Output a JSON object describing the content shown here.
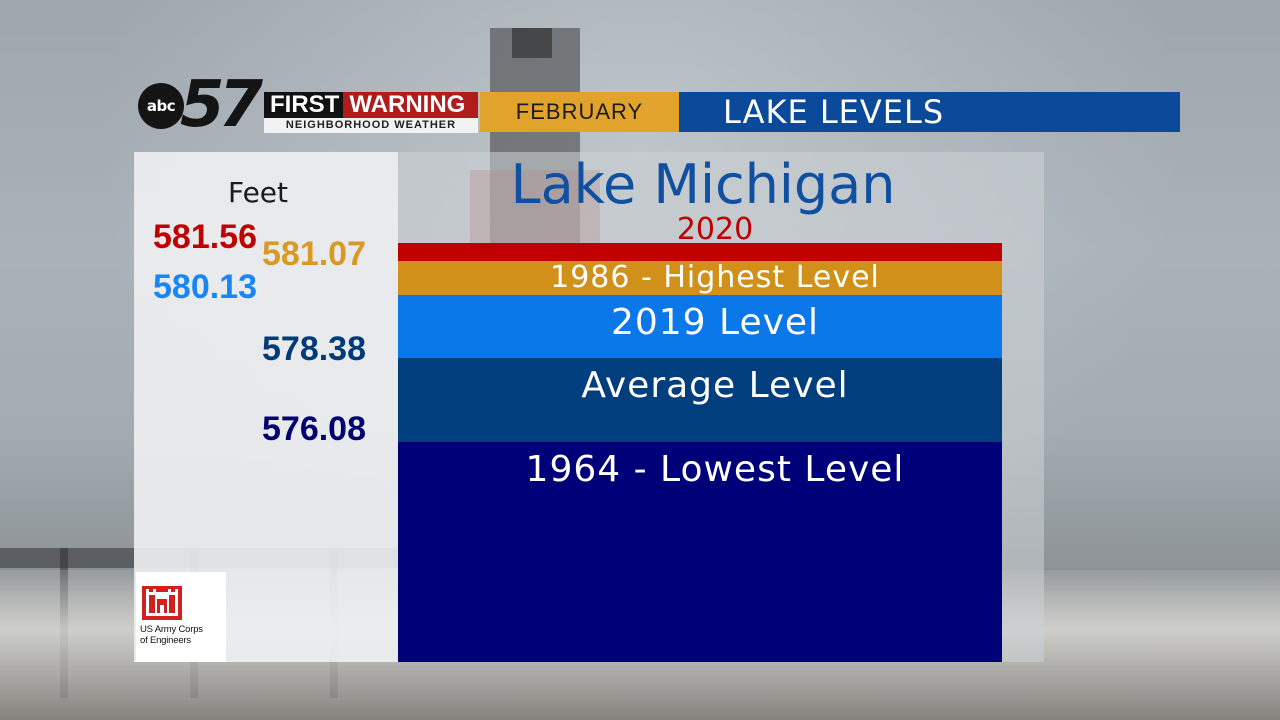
{
  "header": {
    "logo_abc": "abc",
    "logo_number": "57",
    "first": "FIRST",
    "warning": "WARNING",
    "subtitle": "NEIGHBORHOOD WEATHER",
    "month": "FEBRUARY",
    "topic": "LAKE LEVELS"
  },
  "colors": {
    "level_2020": "#c00000",
    "level_1986": "#d0901a",
    "level_2019": "#0a78e8",
    "level_average": "#013e7d",
    "level_1964": "#000078",
    "header_month_bg": "#e1a32c",
    "header_topic_bg": "#0b4a9a"
  },
  "axis_label": "Feet",
  "chart_data": {
    "type": "bar",
    "title": "Lake Michigan",
    "unit": "Feet",
    "levels": [
      {
        "label": "2020",
        "value": 581.56,
        "value_text": "581.56",
        "color": "#c00000",
        "text_color": "#c00000"
      },
      {
        "label": "1986 - Highest Level",
        "value": 581.07,
        "value_text": "581.07",
        "color": "#d0901a",
        "text_color": "#d99a25"
      },
      {
        "label": "2019 Level",
        "value": 580.13,
        "value_text": "580.13",
        "color": "#0a78e8",
        "text_color": "#1a86f2"
      },
      {
        "label": "Average Level",
        "value": 578.38,
        "value_text": "578.38",
        "color": "#013e7d",
        "text_color": "#003a78"
      },
      {
        "label": "1964 - Lowest Level",
        "value": 576.08,
        "value_text": "576.08",
        "color": "#000078",
        "text_color": "#000070"
      }
    ]
  },
  "source_logo": {
    "text_line1": "US Army Corps",
    "text_line2": "of Engineers"
  }
}
